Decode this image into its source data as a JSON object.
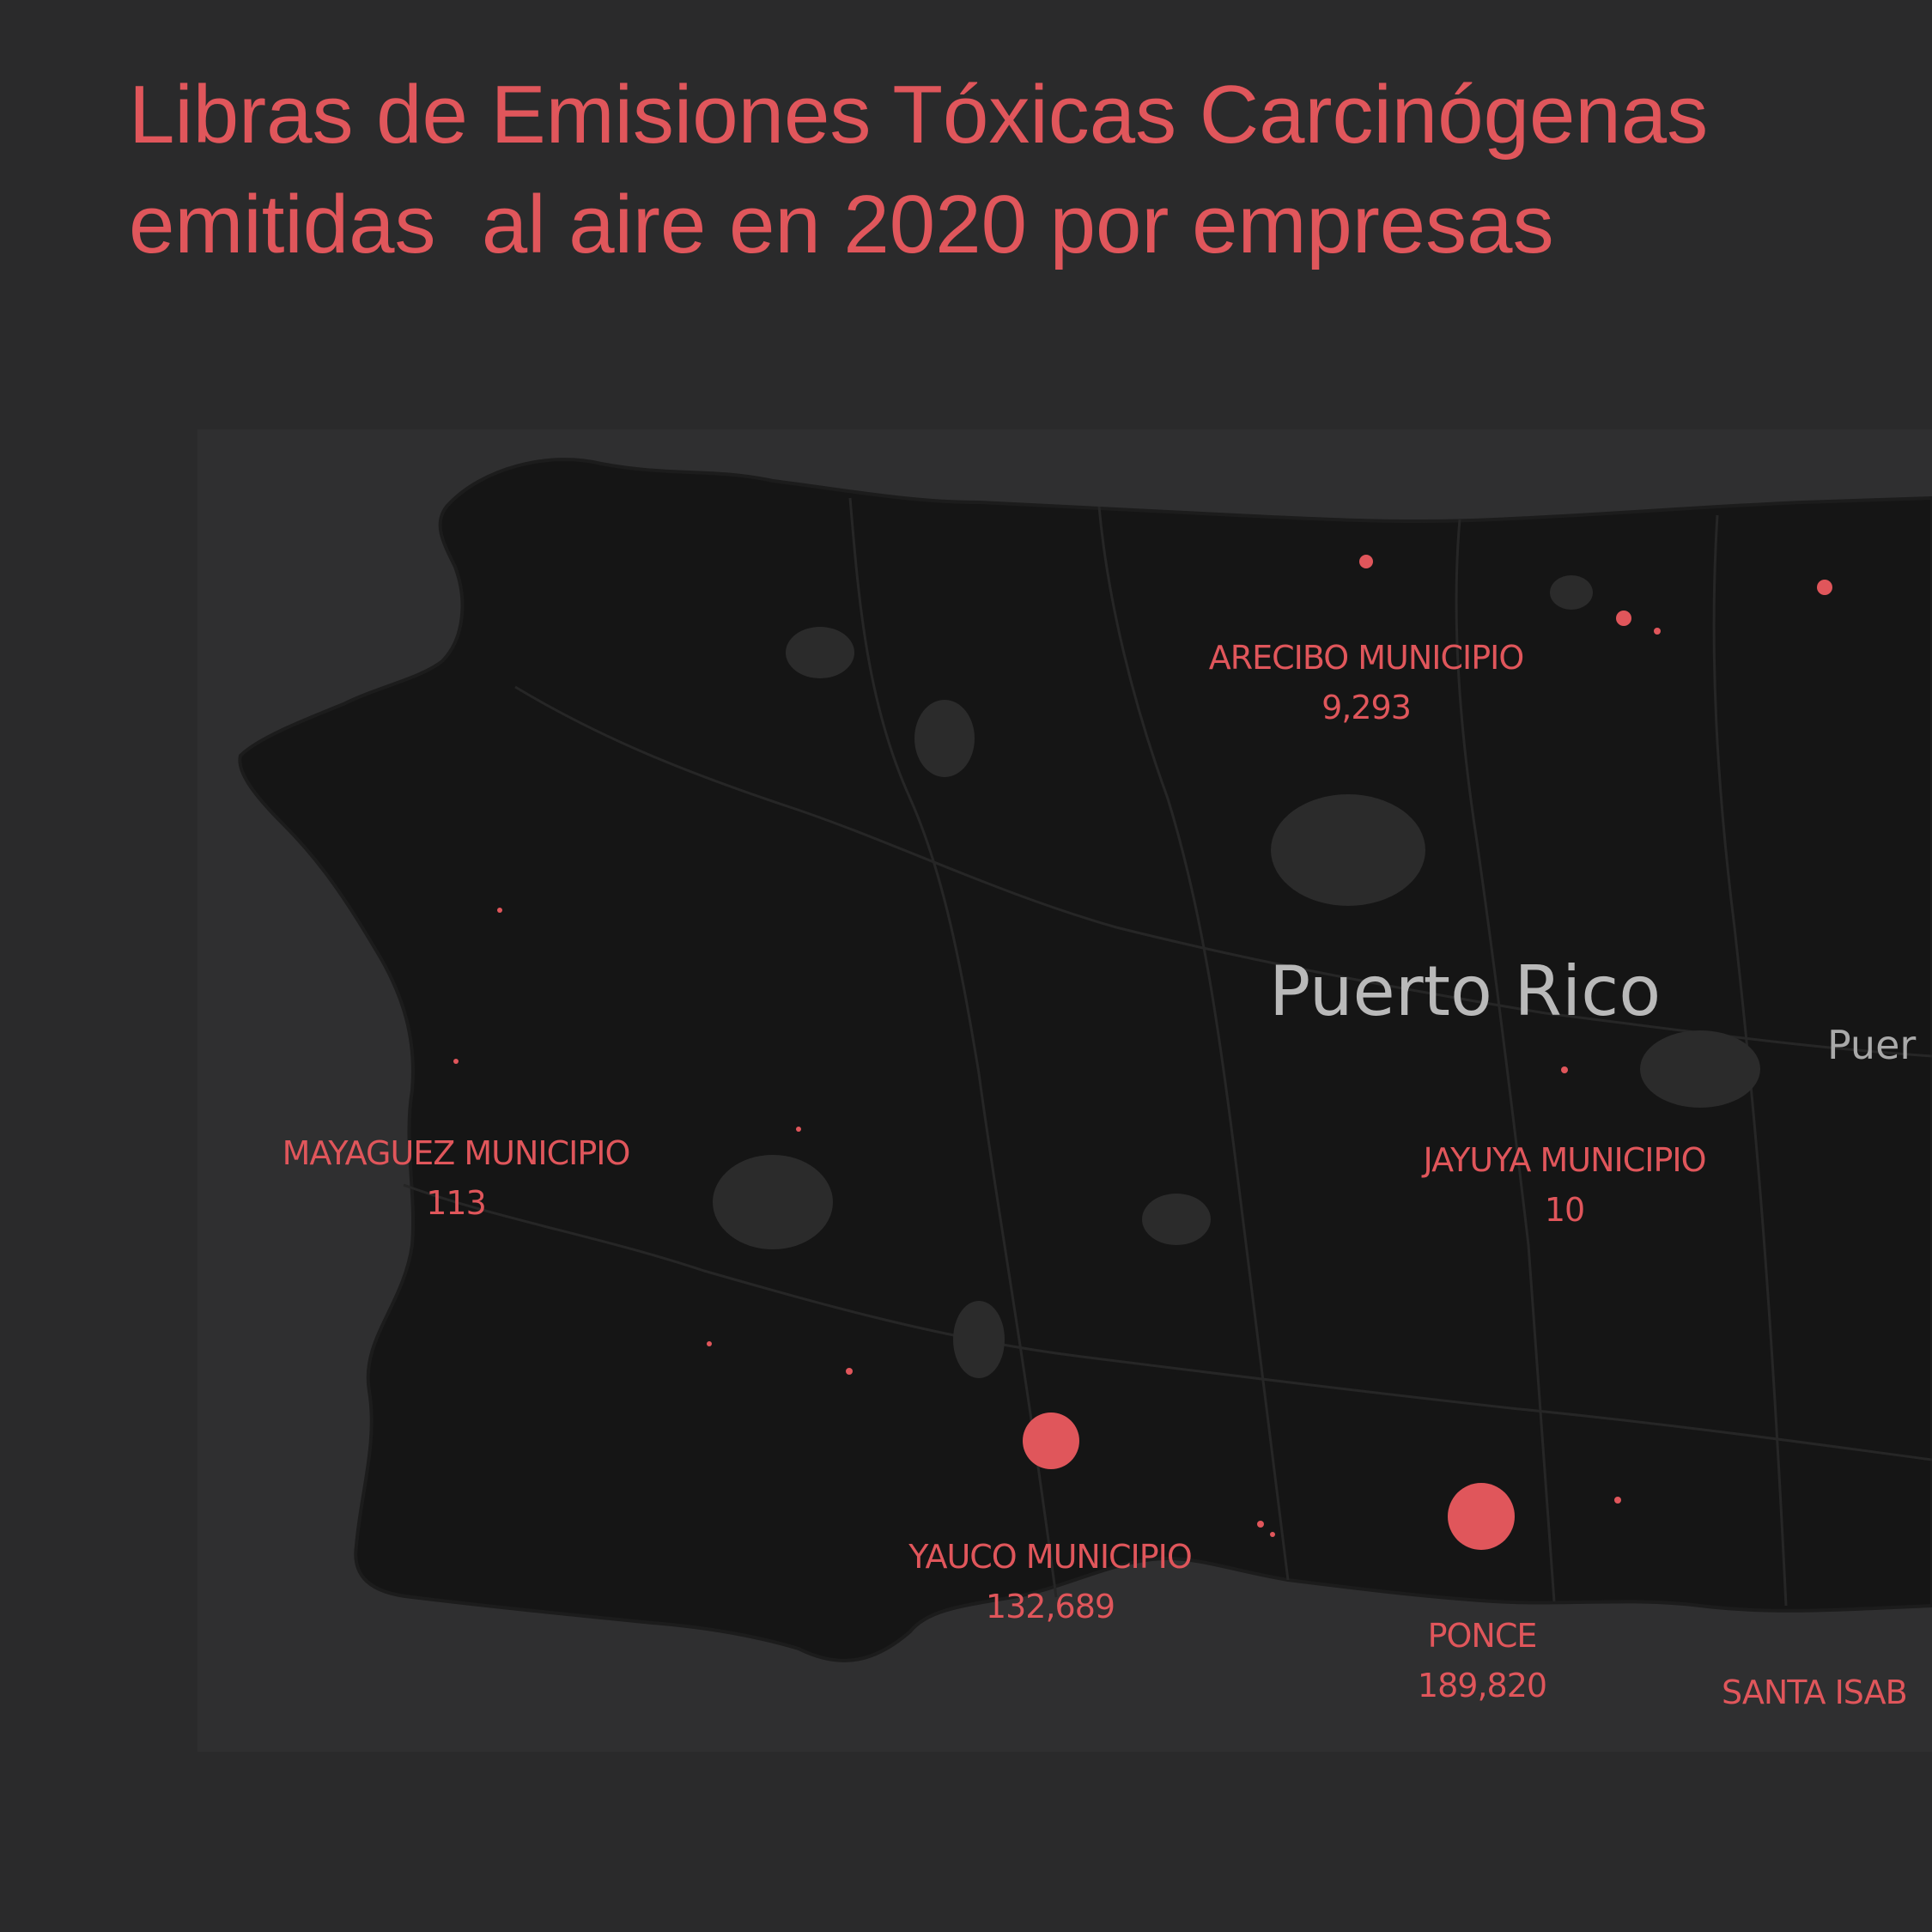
{
  "title": {
    "line1": "Libras de Emisiones Tóxicas Carcinógenas",
    "line2": "emitidas  al aire en 2020 por empresas"
  },
  "place_labels": {
    "island": "Puerto Rico",
    "partial_city": "Puer"
  },
  "municipios": [
    {
      "id": "arecibo",
      "name": "ARECIBO MUNICIPIO",
      "value": "9,293"
    },
    {
      "id": "mayaguez",
      "name": "MAYAGUEZ MUNICIPIO",
      "value": "113"
    },
    {
      "id": "jayuya",
      "name": "JAYUYA MUNICIPIO",
      "value": "10"
    },
    {
      "id": "yauco",
      "name": "YAUCO MUNICIPIO",
      "value": "132,689"
    },
    {
      "id": "ponce",
      "name": "PONCE",
      "value": "189,820"
    },
    {
      "id": "santa-isabel",
      "name": "SANTA ISAB",
      "value": ""
    }
  ],
  "colors": {
    "background": "#2a2a2b",
    "land": "#151515",
    "accent": "#e0565b",
    "place_text": "#b9b9b9"
  }
}
